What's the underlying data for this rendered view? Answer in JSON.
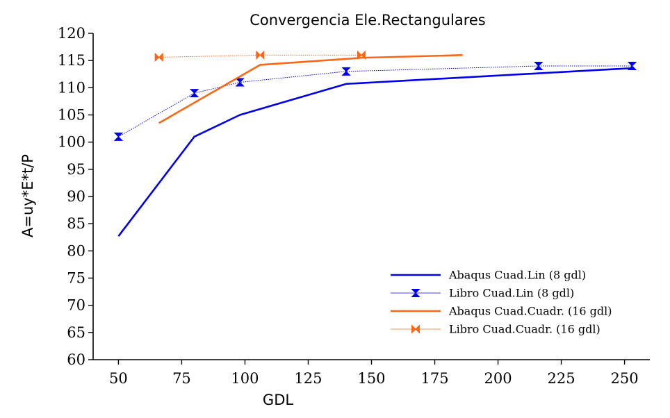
{
  "chart_data": {
    "type": "line",
    "title": "Convergencia Ele.Rectangulares",
    "xlabel": "GDL",
    "ylabel": "A=uy*E*t/P",
    "xlim": [
      40,
      260
    ],
    "ylim": [
      60,
      120
    ],
    "xticks": [
      50,
      75,
      100,
      125,
      150,
      175,
      200,
      225,
      250
    ],
    "yticks": [
      60,
      65,
      70,
      75,
      80,
      85,
      90,
      95,
      100,
      105,
      110,
      115,
      120
    ],
    "grid": false,
    "legend_position": "lower-right",
    "series": [
      {
        "name": "Abaqus Cuad.Lin (8 gdl)",
        "color": "#0000ee",
        "style": "thick-line",
        "marker": "none",
        "x": [
          50,
          80,
          98,
          140,
          253
        ],
        "y": [
          82.7,
          101,
          105,
          110.7,
          113.6
        ]
      },
      {
        "name": "Libro Cuad.Lin (8 gdl)",
        "color": "#0000ee",
        "style": "thin-dotted-line",
        "marker": "hourglass",
        "x": [
          50,
          80,
          98,
          140,
          216,
          253
        ],
        "y": [
          101,
          109,
          111,
          113,
          114,
          114
        ]
      },
      {
        "name": "Abaqus Cuad.Cuadr. (16 gdl)",
        "color": "#ff6611",
        "style": "thick-line",
        "marker": "none",
        "x": [
          66,
          106,
          146,
          186
        ],
        "y": [
          103.5,
          114.2,
          115.5,
          116
        ]
      },
      {
        "name": "Libro Cuad.Cuadr. (16 gdl)",
        "color": "#ff6611",
        "style": "thin-dotted-line",
        "marker": "bowtie",
        "x": [
          66,
          106,
          146
        ],
        "y": [
          115.6,
          116,
          116
        ]
      }
    ]
  }
}
